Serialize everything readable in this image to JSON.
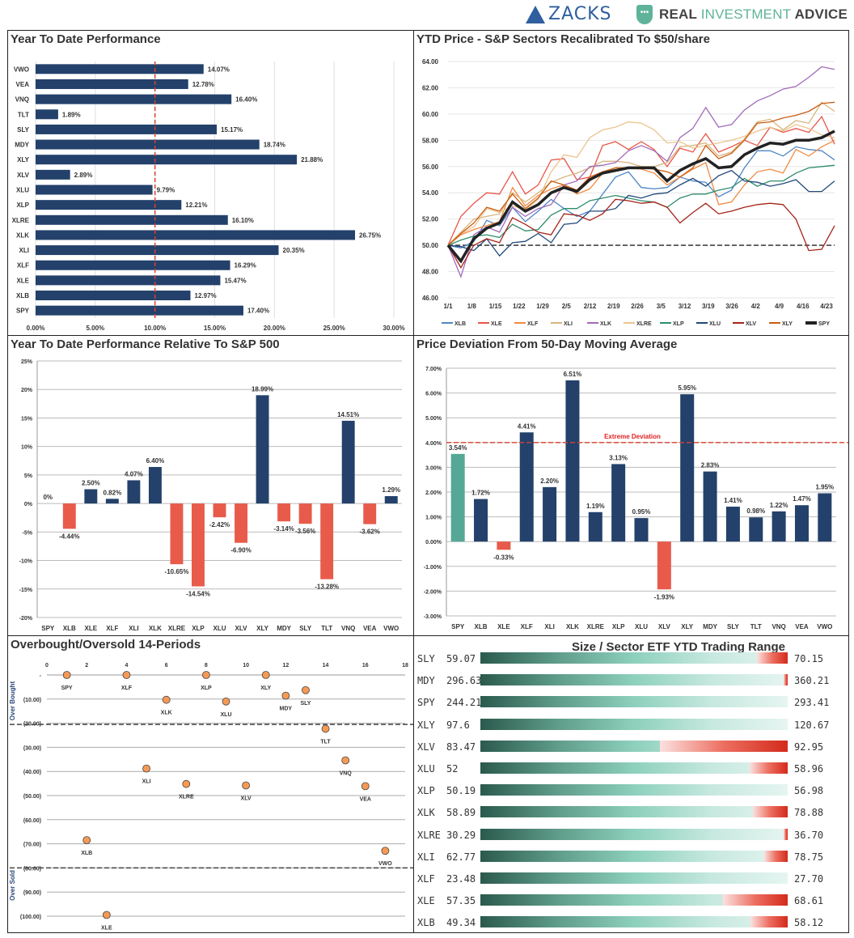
{
  "header": {
    "zacks_label": "ZACKS",
    "ria_label_1": "REAL",
    "ria_label_2": "INVESTMENT",
    "ria_label_3": "ADVICE"
  },
  "colors": {
    "navy": "#23416b",
    "red": "#e85b4b",
    "teal": "#55a896",
    "orange_marker": "#f59a55",
    "dashed_ref": "#d9412f"
  },
  "chart_data": [
    {
      "id": "ytd",
      "type": "bar",
      "orientation": "horizontal",
      "title": "Year To Date Performance",
      "categories": [
        "VWO",
        "VEA",
        "VNQ",
        "TLT",
        "SLY",
        "MDY",
        "XLY",
        "XLV",
        "XLU",
        "XLP",
        "XLRE",
        "XLK",
        "XLI",
        "XLF",
        "XLE",
        "XLB",
        "SPY"
      ],
      "values": [
        14.07,
        12.78,
        16.4,
        1.89,
        15.17,
        18.74,
        21.88,
        2.89,
        9.79,
        12.21,
        16.1,
        26.75,
        20.35,
        16.29,
        15.47,
        12.97,
        17.4
      ],
      "labels": [
        "14.07%",
        "12.78%",
        "16.40%",
        "1.89%",
        "15.17%",
        "18.74%",
        "21.88%",
        "2.89%",
        "9.79%",
        "12.21%",
        "16.10%",
        "26.75%",
        "20.35%",
        "16.29%",
        "15.47%",
        "12.97%",
        "17.40%"
      ],
      "xlim": [
        0,
        30
      ],
      "xticks": [
        "0.00%",
        "5.00%",
        "10.00%",
        "15.00%",
        "20.00%",
        "25.00%",
        "30.00%"
      ],
      "reference_line": 10,
      "grid": true
    },
    {
      "id": "price",
      "type": "line",
      "title": "YTD Price - S&P Sectors Recalibrated To $50/share",
      "ylim": [
        46,
        64
      ],
      "yticks": [
        "46.00",
        "48.00",
        "50.00",
        "52.00",
        "54.00",
        "56.00",
        "58.00",
        "60.00",
        "62.00",
        "64.00"
      ],
      "xticks": [
        "1/1",
        "1/8",
        "1/15",
        "1/22",
        "1/29",
        "2/5",
        "2/12",
        "2/19",
        "2/26",
        "3/5",
        "3/12",
        "3/19",
        "3/26",
        "4/2",
        "4/9",
        "4/16",
        "4/23"
      ],
      "reference_line": 50,
      "series": [
        {
          "name": "XLB",
          "color": "#4f86c6",
          "values": [
            50,
            49.8,
            50.3,
            51.9,
            51.5,
            52.9,
            51.8,
            52.6,
            53.5,
            52.8,
            52.2,
            52.6,
            53.9,
            55.2,
            55.6,
            54.4,
            54.3,
            54.4,
            55.2,
            54.9,
            54.8,
            53.7,
            54.2,
            55.9,
            57.2,
            57.2,
            56.8,
            57.5,
            57.3,
            57.2,
            56.5
          ]
        },
        {
          "name": "XLE",
          "color": "#e8554a",
          "values": [
            50,
            52.2,
            53.2,
            54.0,
            53.9,
            55.6,
            53.9,
            54.6,
            56.5,
            56.6,
            55.0,
            55.2,
            57.6,
            57.9,
            57.3,
            57.9,
            57.3,
            56.0,
            57.4,
            57.1,
            58.5,
            57.1,
            57.5,
            58.0,
            57.6,
            59.0,
            58.6,
            58.9,
            58.6,
            59.8,
            57.7
          ]
        },
        {
          "name": "XLF",
          "color": "#f08a40",
          "values": [
            50,
            50.8,
            51.2,
            51.5,
            51.8,
            54.4,
            53.0,
            53.8,
            54.3,
            54.6,
            53.9,
            54.3,
            55.5,
            55.9,
            55.9,
            55.8,
            55.5,
            54.6,
            55.2,
            55.8,
            56.3,
            53.1,
            53.3,
            54.6,
            55.6,
            55.8,
            55.5,
            57.3,
            56.8,
            57.5,
            58.0
          ]
        },
        {
          "name": "XLI",
          "color": "#d8b57e",
          "values": [
            50,
            51.0,
            52.0,
            52.2,
            52.4,
            54.0,
            53.3,
            54.0,
            54.8,
            55.2,
            55.5,
            55.9,
            56.4,
            56.4,
            56.3,
            56.0,
            56.0,
            56.3,
            57.5,
            57.6,
            57.8,
            56.8,
            57.1,
            58.1,
            59.4,
            59.6,
            58.8,
            59.5,
            59.3,
            60.9,
            60.2
          ]
        },
        {
          "name": "XLK",
          "color": "#a06ab8",
          "values": [
            50,
            47.6,
            50.8,
            51.4,
            51.0,
            52.9,
            52.2,
            52.8,
            53.1,
            54.6,
            54.9,
            56.0,
            56.1,
            56.3,
            57.2,
            57.6,
            57.2,
            56.4,
            58.2,
            58.9,
            60.5,
            59.0,
            59.2,
            60.3,
            61.0,
            61.4,
            61.9,
            62.1,
            62.8,
            63.6,
            63.4
          ]
        },
        {
          "name": "XLRE",
          "color": "#ecc48e",
          "values": [
            50,
            50.9,
            51.4,
            52.8,
            52.5,
            53.0,
            52.7,
            53.5,
            55.6,
            56.9,
            56.7,
            58.2,
            58.8,
            59.0,
            59.4,
            59.3,
            58.8,
            57.8,
            57.9,
            57.4,
            57.6,
            57.8,
            58.0,
            58.3,
            58.7,
            59.0,
            58.7,
            59.2,
            58.9,
            58.4,
            58.2
          ]
        },
        {
          "name": "XLP",
          "color": "#2f8d6e",
          "values": [
            50,
            50.4,
            50.7,
            50.8,
            50.6,
            51.6,
            51.1,
            51.2,
            52.3,
            52.8,
            52.8,
            53.4,
            53.6,
            53.8,
            53.6,
            53.4,
            53.3,
            52.9,
            53.6,
            53.9,
            53.9,
            54.2,
            54.4,
            55.1,
            54.5,
            54.9,
            54.9,
            55.5,
            55.9,
            56.0,
            56.1
          ]
        },
        {
          "name": "XLU",
          "color": "#21497a",
          "values": [
            50,
            49.9,
            49.6,
            50.5,
            49.2,
            50.2,
            50.3,
            50.9,
            50.2,
            51.6,
            51.7,
            52.6,
            52.6,
            52.8,
            53.8,
            53.6,
            53.9,
            54.0,
            54.6,
            55.1,
            54.5,
            55.3,
            55.7,
            54.9,
            54.8,
            54.5,
            54.7,
            55.0,
            54.1,
            54.1,
            54.9
          ]
        },
        {
          "name": "XLV",
          "color": "#a52318",
          "values": [
            50,
            48.3,
            50.0,
            50.5,
            50.2,
            52.1,
            51.6,
            51.0,
            50.8,
            52.4,
            52.3,
            51.9,
            52.4,
            53.5,
            53.4,
            53.2,
            53.3,
            52.9,
            51.7,
            52.5,
            53.2,
            52.4,
            52.6,
            52.9,
            53.1,
            53.2,
            53.1,
            52.0,
            49.6,
            49.7,
            51.5
          ]
        },
        {
          "name": "XLY",
          "color": "#c95d12",
          "values": [
            50,
            50.9,
            51.7,
            52.9,
            52.6,
            53.9,
            52.8,
            53.6,
            54.9,
            54.6,
            54.2,
            55.2,
            55.6,
            55.9,
            55.9,
            55.9,
            55.8,
            55.6,
            55.2,
            55.9,
            57.6,
            56.6,
            57.0,
            58.0,
            59.3,
            59.4,
            59.7,
            59.9,
            60.2,
            60.8,
            60.9
          ]
        },
        {
          "name": "SPY",
          "color": "#222222",
          "values": [
            50,
            48.8,
            50.5,
            51.3,
            51.7,
            53.3,
            52.6,
            53.1,
            54.0,
            54.4,
            54.1,
            55.0,
            55.5,
            55.7,
            55.9,
            55.9,
            55.9,
            54.9,
            55.7,
            56.2,
            56.6,
            55.9,
            56.0,
            56.9,
            57.4,
            57.8,
            57.7,
            58.0,
            58.0,
            58.2,
            58.7
          ]
        }
      ],
      "legend": [
        "XLB",
        "XLE",
        "XLF",
        "XLI",
        "XLK",
        "XLRE",
        "XLP",
        "XLU",
        "XLV",
        "XLY",
        "SPY"
      ],
      "legend_position": "bottom"
    },
    {
      "id": "relative",
      "type": "bar",
      "title": "Year To Date Performance Relative To S&P 500",
      "categories": [
        "SPY",
        "XLB",
        "XLE",
        "XLF",
        "XLI",
        "XLK",
        "XLRE",
        "XLP",
        "XLU",
        "XLV",
        "XLY",
        "MDY",
        "SLY",
        "TLT",
        "VNQ",
        "VEA",
        "VWO"
      ],
      "values": [
        0,
        -4.44,
        2.5,
        0.82,
        4.07,
        6.4,
        -10.65,
        -14.54,
        -2.42,
        -6.9,
        18.99,
        -3.14,
        -3.56,
        -13.28,
        14.51,
        -3.62,
        1.29
      ],
      "labels": [
        "0%",
        "-4.44%",
        "2.50%",
        "0.82%",
        "4.07%",
        "6.40%",
        "-10.65%",
        "-14.54%",
        "-2.42%",
        "-6.90%",
        "18.99%",
        "-3.14%",
        "-3.56%",
        "-13.28%",
        "14.51%",
        "-3.62%",
        "1.29%"
      ],
      "ylim": [
        -20,
        25
      ],
      "yticks": [
        "-20%",
        "-15%",
        "-10%",
        "-5%",
        "0%",
        "5%",
        "10%",
        "15%",
        "20%",
        "25%"
      ],
      "grid": true
    },
    {
      "id": "deviation",
      "type": "bar",
      "title": "Price Deviation From 50-Day Moving Average",
      "categories": [
        "SPY",
        "XLB",
        "XLE",
        "XLF",
        "XLI",
        "XLK",
        "XLRE",
        "XLP",
        "XLU",
        "XLV",
        "XLY",
        "MDY",
        "SLY",
        "TLT",
        "VNQ",
        "VEA",
        "VWO"
      ],
      "values": [
        3.54,
        1.72,
        -0.33,
        4.41,
        2.2,
        6.51,
        1.19,
        3.13,
        0.95,
        -1.93,
        5.95,
        2.83,
        1.41,
        0.98,
        1.22,
        1.47,
        1.95
      ],
      "labels": [
        "3.54%",
        "1.72%",
        "-0.33%",
        "4.41%",
        "2.20%",
        "6.51%",
        "1.19%",
        "3.13%",
        "0.95%",
        "-1.93%",
        "5.95%",
        "2.83%",
        "1.41%",
        "0.98%",
        "1.22%",
        "1.47%",
        "1.95%"
      ],
      "ylim": [
        -3,
        7
      ],
      "yticks": [
        "-3.00%",
        "-2.00%",
        "-1.00%",
        "0.00%",
        "1.00%",
        "2.00%",
        "3.00%",
        "4.00%",
        "5.00%",
        "6.00%",
        "7.00%"
      ],
      "reference_line": 4,
      "reference_label": "Extreme Deviation",
      "grid": true
    },
    {
      "id": "obos",
      "type": "scatter",
      "title": "Overbought/Oversold 14-Periods",
      "points": [
        {
          "label": "SPY",
          "x": 1,
          "y": 0
        },
        {
          "label": "XLB",
          "x": 2,
          "y": -68.5
        },
        {
          "label": "XLE",
          "x": 3,
          "y": -99.5
        },
        {
          "label": "XLF",
          "x": 4,
          "y": 0
        },
        {
          "label": "XLI",
          "x": 5,
          "y": -38.8
        },
        {
          "label": "XLK",
          "x": 6,
          "y": -10.3
        },
        {
          "label": "XLRE",
          "x": 7,
          "y": -45.2
        },
        {
          "label": "XLP",
          "x": 8,
          "y": 0
        },
        {
          "label": "XLU",
          "x": 9,
          "y": -11.0
        },
        {
          "label": "XLV",
          "x": 10,
          "y": -45.8
        },
        {
          "label": "XLY",
          "x": 11,
          "y": 0
        },
        {
          "label": "MDY",
          "x": 12,
          "y": -8.6
        },
        {
          "label": "SLY",
          "x": 13,
          "y": -6.3
        },
        {
          "label": "TLT",
          "x": 14,
          "y": -22.3
        },
        {
          "label": "VNQ",
          "x": 15,
          "y": -35.4
        },
        {
          "label": "VEA",
          "x": 16,
          "y": -46.1
        },
        {
          "label": "VWO",
          "x": 17,
          "y": -72.9
        }
      ],
      "xlim": [
        0,
        18
      ],
      "ylim": [
        -100,
        0
      ],
      "xticks": [
        "0",
        "2",
        "4",
        "6",
        "8",
        "10",
        "12",
        "14",
        "16",
        "18"
      ],
      "yticks": [
        "-",
        "(10.00)",
        "(20.00)",
        "(30.00)",
        "(40.00)",
        "(50.00)",
        "(60.00)",
        "(70.00)",
        "(80.00)",
        "(90.00)",
        "(100.00)"
      ],
      "overbought_line": -20.5,
      "oversold_line": -80,
      "ylabel_top": "Over Bought",
      "ylabel_bottom": "Over Sold"
    },
    {
      "id": "range",
      "type": "table",
      "title": "Size / Sector ETF YTD Trading Range",
      "rows": [
        {
          "ticker": "SLY",
          "low": "59.07",
          "high": "70.15",
          "red_fraction": 0.1
        },
        {
          "ticker": "MDY",
          "low": "296.63",
          "high": "360.21",
          "red_fraction": 0.012
        },
        {
          "ticker": "SPY",
          "low": "244.21",
          "high": "293.41",
          "red_fraction": 0
        },
        {
          "ticker": "XLY",
          "low": "97.6",
          "high": "120.67",
          "red_fraction": 0
        },
        {
          "ticker": "XLV",
          "low": "83.47",
          "high": "92.95",
          "red_fraction": 0.415
        },
        {
          "ticker": "XLU",
          "low": "52",
          "high": "58.96",
          "red_fraction": 0.125
        },
        {
          "ticker": "XLP",
          "low": "50.19",
          "high": "56.98",
          "red_fraction": 0
        },
        {
          "ticker": "XLK",
          "low": "58.89",
          "high": "78.88",
          "red_fraction": 0.112
        },
        {
          "ticker": "XLRE",
          "low": "30.29",
          "high": "36.70",
          "red_fraction": 0.014
        },
        {
          "ticker": "XLI",
          "low": "62.77",
          "high": "78.75",
          "red_fraction": 0.076
        },
        {
          "ticker": "XLF",
          "low": "23.48",
          "high": "27.70",
          "red_fraction": 0
        },
        {
          "ticker": "XLE",
          "low": "57.35",
          "high": "68.61",
          "red_fraction": 0.21
        },
        {
          "ticker": "XLB",
          "low": "49.34",
          "high": "58.12",
          "red_fraction": 0.12
        }
      ]
    }
  ]
}
